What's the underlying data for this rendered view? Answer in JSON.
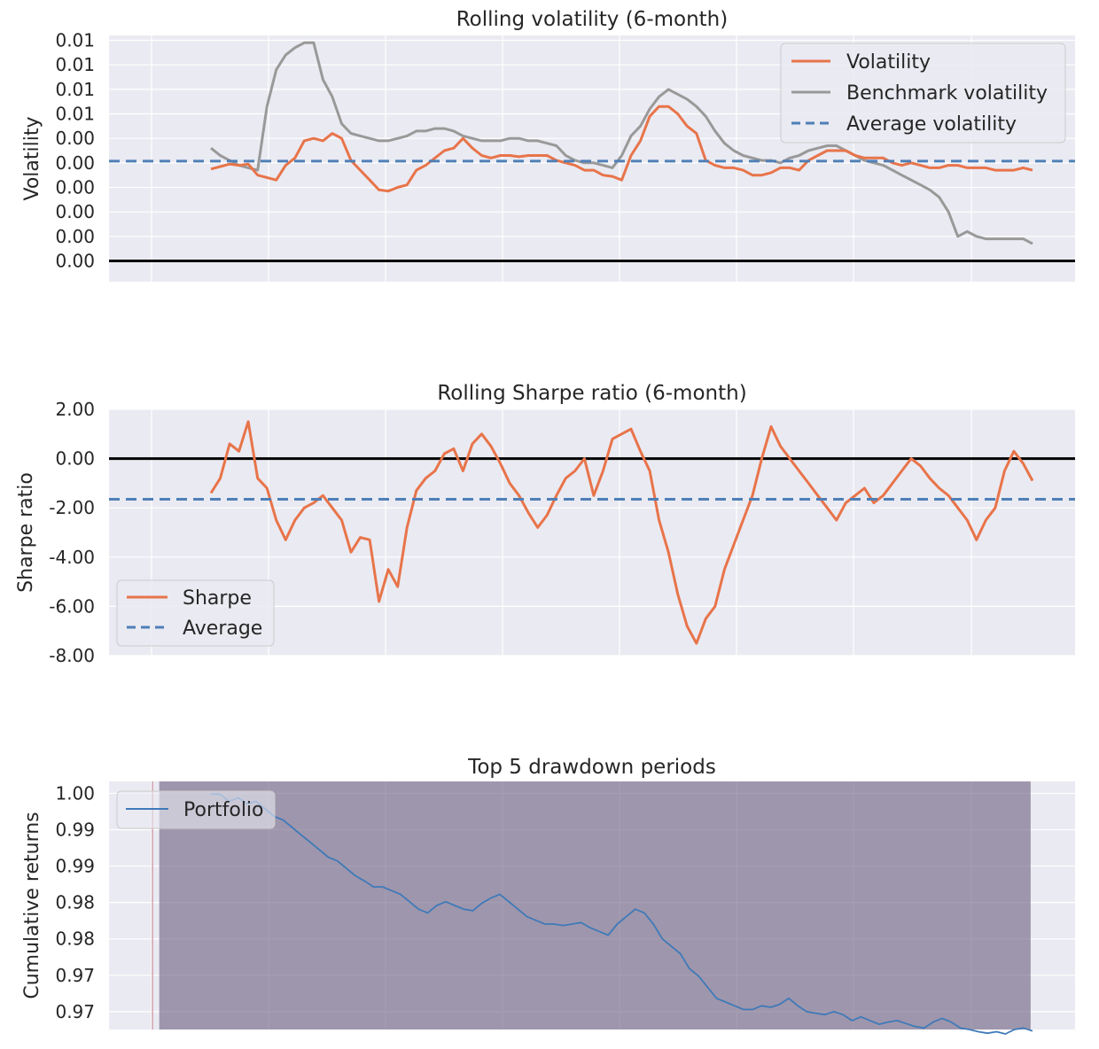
{
  "colors": {
    "plot_bg": "#eaeaf2",
    "grid": "#ffffff",
    "volatility": "#e8744a",
    "benchmark": "#999999",
    "average": "#4f7fb7",
    "zero_line": "#000000",
    "portfolio": "#3f7ab8",
    "drawdown_shade": "#7a6f8c"
  },
  "chart_data": [
    {
      "type": "line",
      "title": "Rolling volatility (6-month)",
      "ylabel": "Volatility",
      "xlabel": "",
      "x_range": [
        0,
        100
      ],
      "ylim": [
        0.00185,
        0.0119
      ],
      "yticks": [
        0.0027,
        0.0037,
        0.0047,
        0.0057,
        0.0067,
        0.0077,
        0.0087,
        0.0097,
        0.0107,
        0.0117
      ],
      "ytick_labels": [
        "0.00",
        "0.00",
        "0.00",
        "0.00",
        "0.00",
        "0.00",
        "0.01",
        "0.01",
        "0.01",
        "0.01"
      ],
      "grid": true,
      "legend_position": "top-right",
      "series": [
        {
          "name": "Volatility",
          "style": "solid",
          "x": [
            0,
            1,
            2,
            3,
            4,
            5,
            6,
            7,
            8,
            9,
            10,
            11,
            12,
            13,
            14,
            15,
            16,
            17,
            18,
            19,
            20,
            21,
            22,
            23,
            24,
            25,
            26,
            27,
            28,
            29,
            30,
            31,
            32,
            33,
            34,
            35,
            36,
            37,
            38,
            39,
            40,
            41,
            42,
            43,
            44,
            45,
            46,
            47,
            48,
            49,
            50,
            51,
            52,
            53,
            54,
            55,
            56,
            57,
            58,
            59,
            60,
            61,
            62,
            63,
            64,
            65,
            66,
            67,
            68,
            69,
            70,
            71,
            72,
            73,
            74,
            75,
            76,
            77,
            78,
            79,
            80,
            81,
            82,
            83,
            84,
            85,
            86,
            87,
            88
          ],
          "values": [
            0.00645,
            0.00655,
            0.00665,
            0.0066,
            0.00665,
            0.0062,
            0.0061,
            0.006,
            0.0066,
            0.0069,
            0.0076,
            0.0077,
            0.0076,
            0.0079,
            0.0077,
            0.0068,
            0.0064,
            0.006,
            0.0056,
            0.00555,
            0.0057,
            0.0058,
            0.0064,
            0.0066,
            0.0069,
            0.0072,
            0.0073,
            0.0077,
            0.0073,
            0.007,
            0.0069,
            0.007,
            0.007,
            0.00695,
            0.007,
            0.007,
            0.007,
            0.0068,
            0.0067,
            0.0066,
            0.0064,
            0.0064,
            0.0062,
            0.00615,
            0.006,
            0.007,
            0.0076,
            0.0086,
            0.009,
            0.009,
            0.0087,
            0.0082,
            0.0079,
            0.0068,
            0.0066,
            0.0065,
            0.0065,
            0.0064,
            0.0062,
            0.0062,
            0.0063,
            0.0065,
            0.0065,
            0.0064,
            0.0068,
            0.007,
            0.0072,
            0.0072,
            0.0072,
            0.007,
            0.0069,
            0.0069,
            0.0069,
            0.0067,
            0.0066,
            0.0067,
            0.0066,
            0.0065,
            0.0065,
            0.0066,
            0.0066,
            0.0065,
            0.0065,
            0.0065,
            0.0064,
            0.0064,
            0.0064,
            0.0065,
            0.0064
          ]
        },
        {
          "name": "Benchmark volatility",
          "style": "solid",
          "x": [
            0,
            1,
            2,
            3,
            4,
            5,
            6,
            7,
            8,
            9,
            10,
            11,
            12,
            13,
            14,
            15,
            16,
            17,
            18,
            19,
            20,
            21,
            22,
            23,
            24,
            25,
            26,
            27,
            28,
            29,
            30,
            31,
            32,
            33,
            34,
            35,
            36,
            37,
            38,
            39,
            40,
            41,
            42,
            43,
            44,
            45,
            46,
            47,
            48,
            49,
            50,
            51,
            52,
            53,
            54,
            55,
            56,
            57,
            58,
            59,
            60,
            61,
            62,
            63,
            64,
            65,
            66,
            67,
            68,
            69,
            70,
            71,
            72,
            73,
            74,
            75,
            76,
            77,
            78,
            79,
            80,
            81,
            82,
            83,
            84,
            85,
            86,
            87,
            88
          ],
          "values": [
            0.0073,
            0.007,
            0.0068,
            0.0066,
            0.0065,
            0.0064,
            0.009,
            0.0105,
            0.0111,
            0.0114,
            0.0116,
            0.0116,
            0.0101,
            0.0094,
            0.0083,
            0.0079,
            0.0078,
            0.0077,
            0.0076,
            0.0076,
            0.0077,
            0.0078,
            0.008,
            0.008,
            0.0081,
            0.0081,
            0.008,
            0.0078,
            0.0077,
            0.0076,
            0.0076,
            0.0076,
            0.0077,
            0.0077,
            0.0076,
            0.0076,
            0.0075,
            0.0074,
            0.007,
            0.0068,
            0.0067,
            0.0067,
            0.0066,
            0.0065,
            0.007,
            0.0078,
            0.0082,
            0.0089,
            0.0094,
            0.0097,
            0.0095,
            0.0093,
            0.009,
            0.0086,
            0.008,
            0.0075,
            0.0072,
            0.007,
            0.0069,
            0.0068,
            0.0068,
            0.0067,
            0.0069,
            0.007,
            0.0072,
            0.0073,
            0.0074,
            0.0074,
            0.0072,
            0.007,
            0.0068,
            0.0067,
            0.0066,
            0.0064,
            0.0062,
            0.006,
            0.0058,
            0.0056,
            0.0053,
            0.0047,
            0.0037,
            0.0039,
            0.0037,
            0.0036,
            0.0036,
            0.0036,
            0.0036,
            0.0036,
            0.0034
          ]
        }
      ],
      "reference_lines": [
        {
          "name": "Average volatility",
          "value": 0.00677,
          "style": "dashed"
        },
        {
          "name": "",
          "value": 0.0027,
          "style": "solid-black"
        }
      ]
    },
    {
      "type": "line",
      "title": "Rolling Sharpe ratio (6-month)",
      "ylabel": "Sharpe ratio",
      "xlabel": "",
      "x_range": [
        0,
        100
      ],
      "ylim": [
        -8,
        2
      ],
      "yticks": [
        -8,
        -6,
        -4,
        -2,
        0,
        2
      ],
      "ytick_labels": [
        "-8.00",
        "-6.00",
        "-4.00",
        "-2.00",
        "0.00",
        "2.00"
      ],
      "grid": true,
      "legend_position": "bottom-left",
      "series": [
        {
          "name": "Sharpe",
          "style": "solid",
          "x": [
            0,
            1,
            2,
            3,
            4,
            5,
            6,
            7,
            8,
            9,
            10,
            11,
            12,
            13,
            14,
            15,
            16,
            17,
            18,
            19,
            20,
            21,
            22,
            23,
            24,
            25,
            26,
            27,
            28,
            29,
            30,
            31,
            32,
            33,
            34,
            35,
            36,
            37,
            38,
            39,
            40,
            41,
            42,
            43,
            44,
            45,
            46,
            47,
            48,
            49,
            50,
            51,
            52,
            53,
            54,
            55,
            56,
            57,
            58,
            59,
            60,
            61,
            62,
            63,
            64,
            65,
            66,
            67,
            68,
            69,
            70,
            71,
            72,
            73,
            74,
            75,
            76,
            77,
            78,
            79,
            80,
            81,
            82,
            83,
            84,
            85,
            86,
            87,
            88
          ],
          "values": [
            -1.4,
            -0.8,
            0.6,
            0.3,
            1.5,
            -0.8,
            -1.2,
            -2.5,
            -3.3,
            -2.5,
            -2.0,
            -1.8,
            -1.5,
            -2.0,
            -2.5,
            -3.8,
            -3.2,
            -3.3,
            -5.8,
            -4.5,
            -5.2,
            -2.8,
            -1.3,
            -0.8,
            -0.5,
            0.2,
            0.4,
            -0.5,
            0.6,
            1.0,
            0.5,
            -0.2,
            -1.0,
            -1.5,
            -2.2,
            -2.8,
            -2.3,
            -1.5,
            -0.8,
            -0.5,
            0.0,
            -1.5,
            -0.5,
            0.8,
            1.0,
            1.2,
            0.3,
            -0.5,
            -2.5,
            -3.8,
            -5.5,
            -6.8,
            -7.5,
            -6.5,
            -6.0,
            -4.5,
            -3.5,
            -2.5,
            -1.5,
            0.0,
            1.3,
            0.5,
            0.0,
            -0.5,
            -1.0,
            -1.5,
            -2.0,
            -2.5,
            -1.8,
            -1.5,
            -1.2,
            -1.8,
            -1.5,
            -1.0,
            -0.5,
            0.0,
            -0.3,
            -0.8,
            -1.2,
            -1.5,
            -2.0,
            -2.5,
            -3.3,
            -2.5,
            -2.0,
            -0.5,
            0.3,
            -0.2,
            -0.9
          ]
        }
      ],
      "reference_lines": [
        {
          "name": "Average",
          "value": -1.65,
          "style": "dashed"
        },
        {
          "name": "",
          "value": 0,
          "style": "solid-black"
        }
      ]
    },
    {
      "type": "line",
      "title": "Top 5 drawdown periods",
      "ylabel": "Cumulative returns",
      "xlabel": "",
      "x_range": [
        0,
        100
      ],
      "ylim": [
        0.9688,
        1.0022
      ],
      "yticks": [
        0.9712,
        0.9761,
        0.981,
        0.9859,
        0.9908,
        0.9957,
        1.0006
      ],
      "ytick_labels": [
        "0.97",
        "0.97",
        "0.98",
        "0.98",
        "0.99",
        "0.99",
        "1.00"
      ],
      "grid": true,
      "legend_position": "top-left",
      "shaded_regions": [
        {
          "x_start": 5.2,
          "x_end": 95.4
        }
      ],
      "vertical_markers": [
        4.5
      ],
      "series": [
        {
          "name": "Portfolio",
          "style": "solid",
          "x": [
            0,
            1,
            2,
            3,
            4,
            5,
            6,
            7,
            8,
            9,
            10,
            11,
            12,
            13,
            14,
            15,
            16,
            17,
            18,
            19,
            20,
            21,
            22,
            23,
            24,
            25,
            26,
            27,
            28,
            29,
            30,
            31,
            32,
            33,
            34,
            35,
            36,
            37,
            38,
            39,
            40,
            41,
            42,
            43,
            44,
            45,
            46,
            47,
            48,
            49,
            50,
            51,
            52,
            53,
            54,
            55,
            56,
            57,
            58,
            59,
            60,
            61,
            62,
            63,
            64,
            65,
            66,
            67,
            68,
            69,
            70,
            71,
            72,
            73,
            74,
            75,
            76,
            77,
            78,
            79,
            80,
            81,
            82,
            83,
            84,
            85,
            86,
            87,
            88,
            89,
            90,
            91
          ],
          "values": [
            1.0005,
            1.0005,
            0.9995,
            1.0,
            0.9992,
            0.9995,
            0.9985,
            0.9975,
            0.997,
            0.996,
            0.995,
            0.994,
            0.993,
            0.992,
            0.9915,
            0.9905,
            0.9895,
            0.9888,
            0.988,
            0.988,
            0.9875,
            0.987,
            0.986,
            0.985,
            0.9845,
            0.9855,
            0.986,
            0.9855,
            0.985,
            0.9848,
            0.9858,
            0.9865,
            0.987,
            0.986,
            0.985,
            0.984,
            0.9835,
            0.983,
            0.983,
            0.9828,
            0.983,
            0.9832,
            0.9825,
            0.982,
            0.9815,
            0.983,
            0.984,
            0.985,
            0.9845,
            0.983,
            0.981,
            0.98,
            0.979,
            0.977,
            0.976,
            0.9745,
            0.973,
            0.9725,
            0.972,
            0.9715,
            0.9715,
            0.972,
            0.9718,
            0.9722,
            0.973,
            0.972,
            0.9712,
            0.971,
            0.9708,
            0.9712,
            0.9708,
            0.97,
            0.9705,
            0.97,
            0.9695,
            0.9698,
            0.97,
            0.9696,
            0.9692,
            0.969,
            0.9698,
            0.9703,
            0.9698,
            0.969,
            0.9688,
            0.9685,
            0.9683,
            0.9685,
            0.9682,
            0.9688,
            0.969,
            0.9686
          ]
        }
      ]
    }
  ],
  "legends": {
    "vol": [
      "Volatility",
      "Benchmark volatility",
      "Average volatility"
    ],
    "sharpe": [
      "Sharpe",
      "Average"
    ],
    "dd": [
      "Portfolio"
    ]
  }
}
